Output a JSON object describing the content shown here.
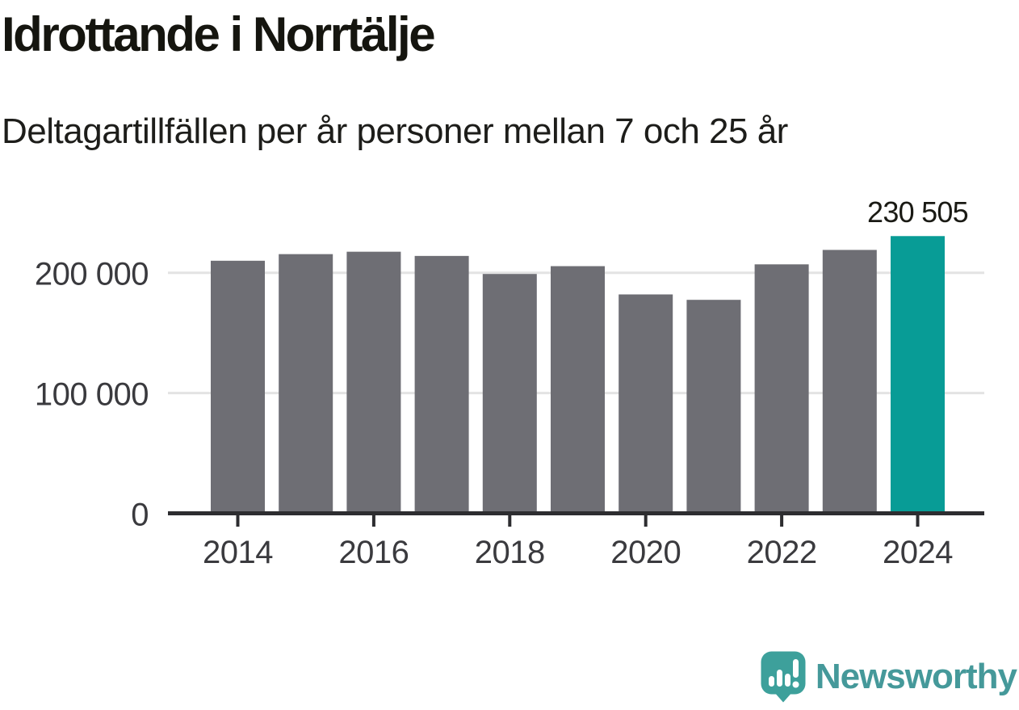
{
  "header": {
    "title": "Idrottande i Norrtälje",
    "subtitle": "Deltagartillfällen per år personer mellan 7 och 25 år"
  },
  "chart_data": {
    "type": "bar",
    "title": "Idrottande i Norrtälje",
    "subtitle": "Deltagartillfällen per år personer mellan 7 och 25 år",
    "categories": [
      "2014",
      "2015",
      "2016",
      "2017",
      "2018",
      "2019",
      "2020",
      "2021",
      "2022",
      "2023",
      "2024"
    ],
    "values": [
      210000,
      215500,
      217500,
      214000,
      199000,
      205500,
      182000,
      177500,
      207000,
      219000,
      230505
    ],
    "highlight_index": 10,
    "highlight_label": "230 505",
    "xtick_labels": [
      "2014",
      "2016",
      "2018",
      "2020",
      "2022",
      "2024"
    ],
    "yticks": [
      {
        "value": 0,
        "label": "0"
      },
      {
        "value": 100000,
        "label": "100 000"
      },
      {
        "value": 200000,
        "label": "200 000"
      }
    ],
    "ylim": [
      0,
      245000
    ],
    "grid": "horizontal",
    "legend": "none",
    "xlabel": "",
    "ylabel": "",
    "bar_color": "#6e6e74",
    "highlight_color": "#089c96",
    "grid_color": "#e3e3e3",
    "axis_color": "#2d2d30"
  },
  "footer": {
    "brand": "Newsworthy",
    "brand_color": "#45999a",
    "logo_color": "#3da09b"
  }
}
